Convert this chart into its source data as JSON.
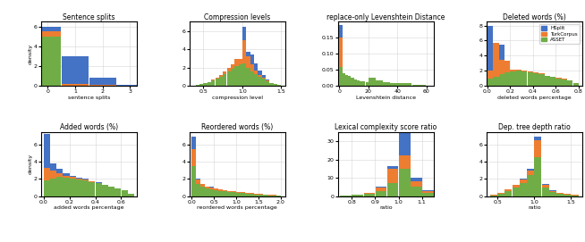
{
  "colors": {
    "HSplit": "#4472C4",
    "TurkCorpus": "#ED7D31",
    "ASSET": "#70AD47"
  },
  "subplots": [
    {
      "title": "Sentence splits",
      "xlabel": "sentence splits",
      "ylabel": "density",
      "xlim": [
        -0.25,
        3.25
      ],
      "ylim": [
        0,
        6.5
      ],
      "yticks": [
        0,
        2,
        4,
        6
      ],
      "xticks": [
        0,
        1,
        2,
        3
      ],
      "bins": [
        -0.5,
        0.5,
        1.5,
        2.5,
        3.5
      ],
      "ASSET": [
        5.0,
        0.0,
        0.0,
        0.0
      ],
      "TurkCorpus": [
        0.5,
        0.2,
        0.1,
        0.0
      ],
      "HSplit": [
        0.5,
        2.8,
        0.7,
        0.1
      ]
    },
    {
      "title": "Compression levels",
      "xlabel": "compression level",
      "ylabel": "",
      "xlim": [
        0.32,
        1.55
      ],
      "ylim": [
        0,
        7.0
      ],
      "yticks": [
        0,
        2,
        4,
        6
      ],
      "xticks": [
        0.5,
        1.0,
        1.5
      ],
      "bins": [
        0.35,
        0.4,
        0.45,
        0.5,
        0.55,
        0.6,
        0.65,
        0.7,
        0.75,
        0.8,
        0.85,
        0.9,
        0.95,
        1.0,
        1.05,
        1.1,
        1.15,
        1.2,
        1.25,
        1.3,
        1.35,
        1.4,
        1.45,
        1.5
      ],
      "ASSET": [
        0.05,
        0.1,
        0.2,
        0.3,
        0.4,
        0.6,
        0.8,
        1.0,
        1.3,
        1.6,
        1.9,
        2.2,
        2.4,
        2.5,
        2.0,
        1.6,
        1.3,
        1.0,
        0.8,
        0.5,
        0.3,
        0.2,
        0.1
      ],
      "TurkCorpus": [
        0.0,
        0.0,
        0.0,
        0.0,
        0.05,
        0.1,
        0.1,
        0.2,
        0.3,
        0.4,
        0.5,
        0.7,
        0.5,
        2.5,
        1.2,
        0.8,
        0.4,
        0.2,
        0.1,
        0.05,
        0.0,
        0.0,
        0.0
      ],
      "HSplit": [
        0.0,
        0.0,
        0.0,
        0.0,
        0.0,
        0.0,
        0.0,
        0.0,
        0.0,
        0.0,
        0.0,
        0.0,
        0.0,
        1.5,
        0.5,
        1.0,
        0.8,
        0.5,
        0.3,
        0.1,
        0.0,
        0.0,
        0.0
      ]
    },
    {
      "title": "replace-only Levenshtein Distance",
      "xlabel": "Levenshtein distance",
      "ylabel": "",
      "xlim": [
        -1,
        65
      ],
      "ylim": [
        0,
        0.2
      ],
      "yticks": [
        0.0,
        0.05,
        0.1,
        0.15
      ],
      "xticks": [
        0,
        20,
        40,
        60
      ],
      "bins": [
        0,
        2,
        4,
        6,
        8,
        10,
        12,
        14,
        16,
        18,
        20,
        25,
        30,
        35,
        40,
        50,
        60
      ],
      "ASSET": [
        0.06,
        0.04,
        0.035,
        0.03,
        0.025,
        0.02,
        0.018,
        0.015,
        0.013,
        0.012,
        0.025,
        0.018,
        0.012,
        0.008,
        0.008,
        0.003
      ],
      "TurkCorpus": [
        0.09,
        0.0,
        0.0,
        0.0,
        0.0,
        0.0,
        0.0,
        0.0,
        0.0,
        0.0,
        0.0,
        0.0,
        0.0,
        0.0,
        0.0,
        0.0
      ],
      "HSplit": [
        0.04,
        0.0,
        0.0,
        0.0,
        0.0,
        0.0,
        0.0,
        0.0,
        0.0,
        0.0,
        0.0,
        0.0,
        0.0,
        0.0,
        0.0,
        0.0
      ]
    },
    {
      "title": "Deleted words (%)",
      "xlabel": "deleted words percentage",
      "ylabel": "",
      "xlim": [
        -0.01,
        0.83
      ],
      "ylim": [
        0,
        8.5
      ],
      "yticks": [
        0,
        2,
        4,
        6,
        8
      ],
      "xticks": [
        0.0,
        0.2,
        0.4,
        0.6,
        0.8
      ],
      "bins": [
        0.0,
        0.05,
        0.1,
        0.15,
        0.2,
        0.25,
        0.3,
        0.35,
        0.4,
        0.45,
        0.5,
        0.55,
        0.6,
        0.65,
        0.7,
        0.75,
        0.8
      ],
      "ASSET": [
        1.0,
        1.2,
        1.5,
        1.8,
        1.9,
        2.0,
        1.9,
        1.8,
        1.7,
        1.6,
        1.3,
        1.2,
        1.0,
        0.9,
        0.7,
        0.4
      ],
      "TurkCorpus": [
        1.0,
        4.5,
        2.0,
        1.5,
        0.3,
        0.2,
        0.15,
        0.1,
        0.1,
        0.05,
        0.05,
        0.05,
        0.05,
        0.05,
        0.05,
        0.0
      ],
      "HSplit": [
        6.0,
        0.0,
        2.0,
        0.0,
        0.0,
        0.0,
        0.0,
        0.0,
        0.0,
        0.0,
        0.0,
        0.0,
        0.0,
        0.0,
        0.0,
        0.0
      ]
    },
    {
      "title": "Added words (%)",
      "xlabel": "added words percentage",
      "ylabel": "density",
      "xlim": [
        -0.02,
        0.72
      ],
      "ylim": [
        0,
        7.5
      ],
      "yticks": [
        0,
        2,
        4,
        6
      ],
      "xticks": [
        0.0,
        0.2,
        0.4,
        0.6
      ],
      "bins": [
        0.0,
        0.05,
        0.1,
        0.15,
        0.2,
        0.25,
        0.3,
        0.35,
        0.4,
        0.45,
        0.5,
        0.55,
        0.6,
        0.65,
        0.7
      ],
      "ASSET": [
        1.8,
        2.0,
        2.2,
        2.1,
        2.0,
        1.9,
        1.8,
        1.6,
        1.5,
        1.3,
        1.1,
        0.9,
        0.7,
        0.3
      ],
      "TurkCorpus": [
        1.5,
        1.0,
        0.5,
        0.3,
        0.2,
        0.15,
        0.1,
        0.1,
        0.05,
        0.05,
        0.05,
        0.0,
        0.0,
        0.0
      ],
      "HSplit": [
        4.0,
        0.8,
        0.5,
        0.3,
        0.2,
        0.1,
        0.1,
        0.05,
        0.05,
        0.0,
        0.0,
        0.0,
        0.0,
        0.0
      ]
    },
    {
      "title": "Reordered words (%)",
      "xlabel": "reordered words percentage",
      "ylabel": "",
      "xlim": [
        -0.05,
        2.1
      ],
      "ylim": [
        0,
        7.5
      ],
      "yticks": [
        0,
        2,
        4,
        6
      ],
      "xticks": [
        0.0,
        0.5,
        1.0,
        1.5,
        2.0
      ],
      "bins": [
        0.0,
        0.1,
        0.2,
        0.3,
        0.4,
        0.5,
        0.6,
        0.7,
        0.8,
        0.9,
        1.0,
        1.1,
        1.2,
        1.3,
        1.4,
        1.5,
        1.6,
        1.7,
        1.8,
        1.9,
        2.0
      ],
      "ASSET": [
        3.5,
        1.4,
        1.1,
        0.9,
        0.8,
        0.7,
        0.6,
        0.55,
        0.5,
        0.45,
        0.4,
        0.35,
        0.3,
        0.25,
        0.2,
        0.15,
        0.12,
        0.1,
        0.08,
        0.05
      ],
      "TurkCorpus": [
        2.0,
        0.5,
        0.3,
        0.2,
        0.2,
        0.2,
        0.15,
        0.15,
        0.1,
        0.1,
        0.1,
        0.1,
        0.1,
        0.1,
        0.1,
        0.1,
        0.08,
        0.05,
        0.03,
        0.02
      ],
      "HSplit": [
        1.5,
        0.1,
        0.05,
        0.05,
        0.05,
        0.0,
        0.0,
        0.0,
        0.0,
        0.0,
        0.0,
        0.0,
        0.0,
        0.0,
        0.0,
        0.0,
        0.0,
        0.0,
        0.0,
        0.0
      ]
    },
    {
      "title": "Lexical complexity score ratio",
      "xlabel": "ratio",
      "ylabel": "",
      "xlim": [
        0.74,
        1.15
      ],
      "ylim": [
        0,
        35
      ],
      "yticks": [
        0,
        10,
        20,
        30
      ],
      "xticks": [
        0.8,
        0.9,
        1.0,
        1.1
      ],
      "bins": [
        0.75,
        0.8,
        0.85,
        0.9,
        0.95,
        1.0,
        1.05,
        1.1,
        1.15
      ],
      "ASSET": [
        0.3,
        0.5,
        1.0,
        2.5,
        7.0,
        15.0,
        5.0,
        1.5
      ],
      "TurkCorpus": [
        0.1,
        0.2,
        0.5,
        2.0,
        8.0,
        7.0,
        3.0,
        1.0
      ],
      "HSplit": [
        0.05,
        0.1,
        0.2,
        0.5,
        1.5,
        13.0,
        2.0,
        0.5
      ]
    },
    {
      "title": "Dep. tree depth ratio",
      "xlabel": "ratio",
      "ylabel": "",
      "xlim": [
        0.35,
        1.65
      ],
      "ylim": [
        0,
        7.5
      ],
      "yticks": [
        0,
        2,
        4,
        6
      ],
      "xticks": [
        0.5,
        1.0,
        1.5
      ],
      "bins": [
        0.4,
        0.5,
        0.6,
        0.7,
        0.8,
        0.9,
        1.0,
        1.1,
        1.2,
        1.3,
        1.4,
        1.5,
        1.6
      ],
      "ASSET": [
        0.1,
        0.3,
        0.6,
        1.0,
        1.5,
        2.5,
        4.5,
        1.0,
        0.5,
        0.3,
        0.2,
        0.1
      ],
      "TurkCorpus": [
        0.05,
        0.1,
        0.2,
        0.3,
        0.4,
        0.5,
        2.0,
        0.3,
        0.1,
        0.05,
        0.02,
        0.01
      ],
      "HSplit": [
        0.0,
        0.0,
        0.0,
        0.0,
        0.1,
        0.2,
        0.5,
        0.1,
        0.05,
        0.0,
        0.0,
        0.0
      ]
    }
  ]
}
